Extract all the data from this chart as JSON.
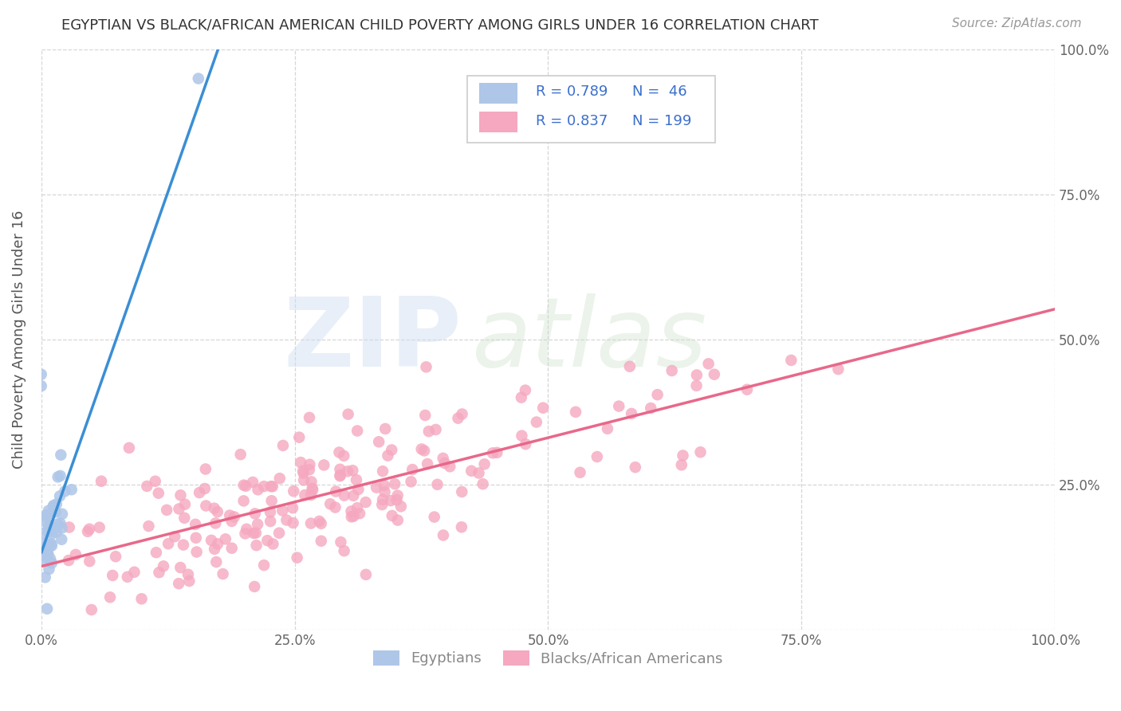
{
  "title": "EGYPTIAN VS BLACK/AFRICAN AMERICAN CHILD POVERTY AMONG GIRLS UNDER 16 CORRELATION CHART",
  "source": "Source: ZipAtlas.com",
  "ylabel": "Child Poverty Among Girls Under 16",
  "watermark_zip": "ZIP",
  "watermark_atlas": "atlas",
  "egyptian_R": 0.789,
  "egyptian_N": 46,
  "black_R": 0.837,
  "black_N": 199,
  "egyptian_color": "#aec6e8",
  "egyptian_line_color": "#3b8ed4",
  "black_color": "#f5a8c0",
  "black_line_color": "#e8688a",
  "background_color": "#ffffff",
  "grid_color": "#cccccc",
  "xlim": [
    0,
    1
  ],
  "ylim": [
    0,
    1
  ],
  "xticks": [
    0,
    0.25,
    0.5,
    0.75,
    1.0
  ],
  "yticks": [
    0.25,
    0.5,
    0.75,
    1.0
  ],
  "xticklabels": [
    "0.0%",
    "25.0%",
    "50.0%",
    "75.0%",
    "100.0%"
  ],
  "yticklabels_right": [
    "25.0%",
    "50.0%",
    "75.0%",
    "100.0%"
  ],
  "legend_text_color": "#3b6fcc",
  "title_color": "#333333",
  "title_fontsize": 13,
  "tick_fontsize": 12,
  "ylabel_fontsize": 13
}
